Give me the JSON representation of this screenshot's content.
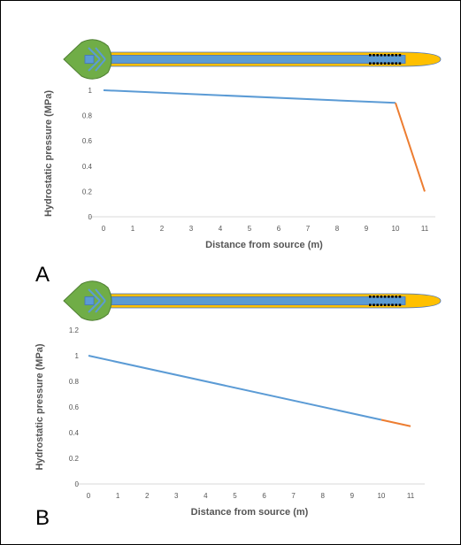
{
  "colors": {
    "leaf": "#70ad47",
    "leaf_stroke": "#4f7f33",
    "vein": "#5b9bd5",
    "stem_outer": "#ffc000",
    "stem_outline": "#4472c4",
    "xylem": "#5b9bd5",
    "sieve_dots": "#000000",
    "series_1": "#5b9bd5",
    "series_2": "#ed7d31",
    "axis": "#d9d9d9"
  },
  "icons": [
    "leaf-source-icon",
    "stem-sink-icon"
  ],
  "chart_data": [
    {
      "panel_label": "A",
      "type": "line",
      "xlabel": "Distance from source (m)",
      "ylabel": "Hydrostatic pressure (MPa)",
      "xlim": [
        0,
        11
      ],
      "ylim": [
        0,
        1
      ],
      "x_ticks": [
        "0",
        "1",
        "2",
        "3",
        "4",
        "5",
        "6",
        "7",
        "8",
        "9",
        "10",
        "11"
      ],
      "y_ticks": [
        "0",
        "0.2",
        "0.4",
        "0.6",
        "0.8",
        "1"
      ],
      "grid": false,
      "series": [
        {
          "color": "#5b9bd5",
          "x": [
            0,
            10
          ],
          "y": [
            1.0,
            0.9
          ]
        },
        {
          "color": "#ed7d31",
          "x": [
            10,
            11
          ],
          "y": [
            0.9,
            0.2
          ]
        }
      ]
    },
    {
      "panel_label": "B",
      "type": "line",
      "xlabel": "Distance from source (m)",
      "ylabel": "Hydrostatic pressure (MPa)",
      "xlim": [
        0,
        11
      ],
      "ylim": [
        0,
        1.2
      ],
      "x_ticks": [
        "0",
        "1",
        "2",
        "3",
        "4",
        "5",
        "6",
        "7",
        "8",
        "9",
        "10",
        "11"
      ],
      "y_ticks": [
        "0",
        "0.2",
        "0.4",
        "0.6",
        "0.8",
        "1",
        "1.2"
      ],
      "grid": false,
      "series": [
        {
          "color": "#5b9bd5",
          "x": [
            0,
            10
          ],
          "y": [
            1.0,
            0.5
          ]
        },
        {
          "color": "#ed7d31",
          "x": [
            10,
            11
          ],
          "y": [
            0.5,
            0.45
          ]
        }
      ]
    }
  ]
}
